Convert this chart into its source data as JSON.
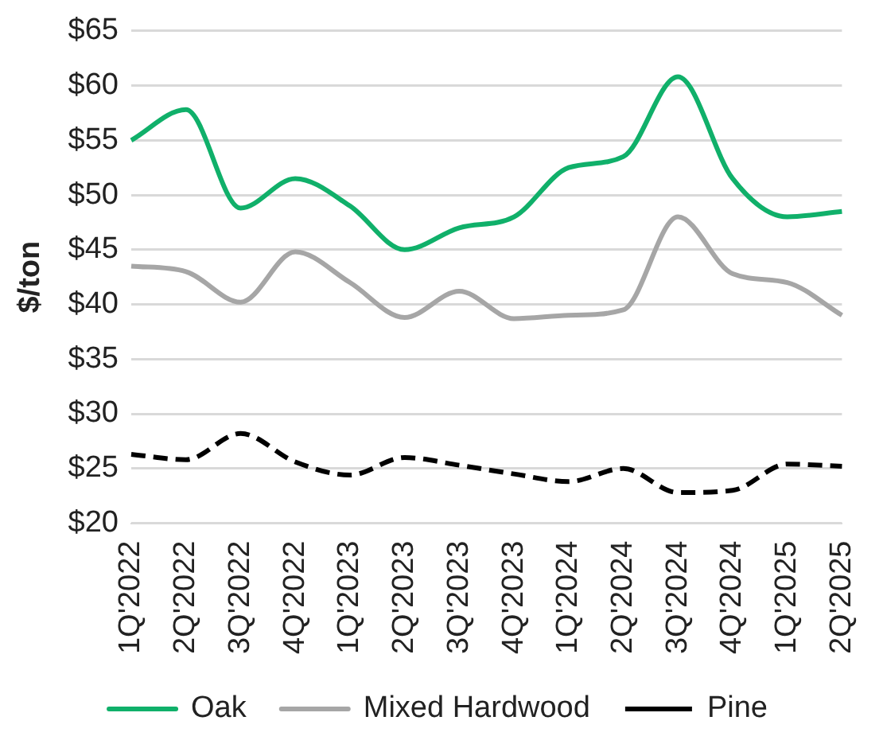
{
  "chart_data": {
    "type": "line",
    "ylabel": "$/ton",
    "categories": [
      "1Q'2022",
      "2Q'2022",
      "3Q'2022",
      "4Q'2022",
      "1Q'2023",
      "2Q'2023",
      "3Q'2023",
      "4Q'2023",
      "1Q'2024",
      "2Q'2024",
      "3Q'2024",
      "4Q'2024",
      "1Q'2025",
      "2Q'2025"
    ],
    "series": [
      {
        "name": "Oak",
        "color": "#10b06a",
        "line_style": "solid",
        "values": [
          55,
          57.8,
          48.8,
          51.5,
          49,
          45,
          47,
          48,
          52.5,
          53.5,
          60.8,
          51.5,
          48,
          48.5
        ]
      },
      {
        "name": "Mixed Hardwood",
        "color": "#a6a6a6",
        "line_style": "solid",
        "values": [
          43.5,
          43,
          40.2,
          44.8,
          42,
          38.8,
          41.2,
          38.7,
          39,
          39.5,
          48,
          42.8,
          42,
          39
        ]
      },
      {
        "name": "Pine",
        "color": "#000000",
        "line_style": "dashed",
        "values": [
          26.3,
          25.8,
          28.2,
          25.6,
          24.4,
          26,
          25.3,
          24.5,
          23.8,
          25,
          22.8,
          23,
          25.4,
          25.2
        ]
      }
    ],
    "ylim": [
      20,
      65
    ],
    "yticks": [
      {
        "value": 20,
        "label": "$20"
      },
      {
        "value": 25,
        "label": "$25"
      },
      {
        "value": 30,
        "label": "$30"
      },
      {
        "value": 35,
        "label": "$35"
      },
      {
        "value": 40,
        "label": "$40"
      },
      {
        "value": 45,
        "label": "$45"
      },
      {
        "value": 50,
        "label": "$50"
      },
      {
        "value": 55,
        "label": "$55"
      },
      {
        "value": 60,
        "label": "$60"
      },
      {
        "value": 65,
        "label": "$65"
      }
    ],
    "grid": "y",
    "legend": "bottom",
    "marker": "none"
  }
}
